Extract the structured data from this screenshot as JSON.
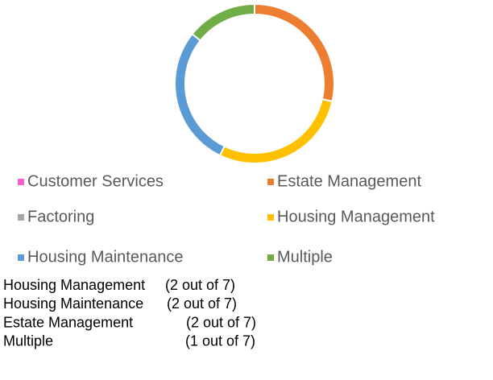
{
  "chart_data": {
    "type": "donut",
    "categories": [
      "Customer Services",
      "Estate Management",
      "Factoring",
      "Housing Management",
      "Housing Maintenance",
      "Multiple"
    ],
    "values": [
      0,
      2,
      0,
      2,
      2,
      1
    ],
    "colors": [
      "#f060c8",
      "#ed7d31",
      "#a5a5a5",
      "#ffc000",
      "#5b9bd5",
      "#70ad47"
    ],
    "draw_order": [
      1,
      3,
      4,
      5,
      0,
      2
    ],
    "legend": "bottom",
    "annotations": [
      {
        "label": "Housing Management",
        "detail": "(2 out of 7)"
      },
      {
        "label": "Housing Maintenance",
        "detail": "(2 out of 7)"
      },
      {
        "label": "Estate Management",
        "detail": "(2 out of 7)"
      },
      {
        "label": "Multiple",
        "detail": "(1 out of 7)"
      }
    ]
  }
}
